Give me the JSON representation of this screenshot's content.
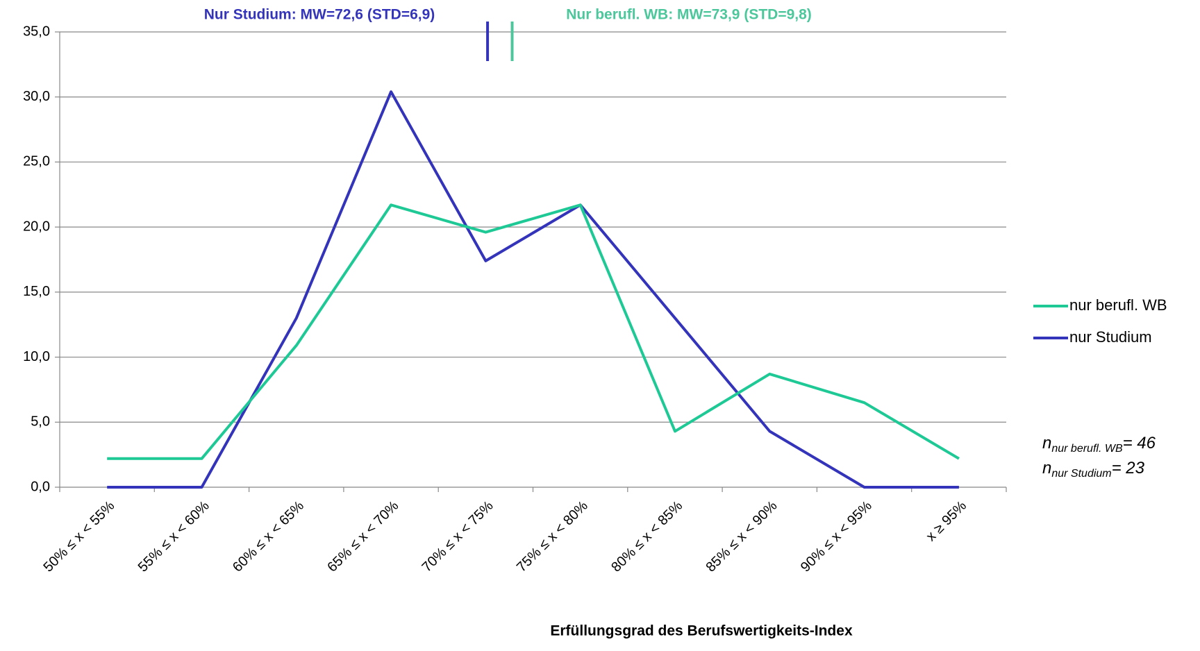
{
  "chart_data": {
    "type": "line",
    "x_label": "Erfüllungsgrad des Berufswertigkeits-Index",
    "categories": [
      "50% ≤ x < 55%",
      "55% ≤ x < 60%",
      "60% ≤ x < 65%",
      "65% ≤ x < 70%",
      "70% ≤ x < 75%",
      "75% ≤ x < 80%",
      "80% ≤ x < 85%",
      "85% ≤ x < 90%",
      "90% ≤ x < 95%",
      "x ≥ 95%"
    ],
    "series": [
      {
        "name": "nur berufl. WB",
        "color": "#1ec996",
        "values": [
          2.2,
          2.2,
          10.9,
          21.7,
          19.6,
          21.7,
          4.3,
          8.7,
          6.5,
          2.2
        ]
      },
      {
        "name": "nur Studium",
        "color": "#3434bb",
        "values": [
          0,
          0,
          13.0,
          30.4,
          17.4,
          21.7,
          13.0,
          4.3,
          0,
          0
        ]
      }
    ],
    "ylim": [
      0,
      35
    ],
    "yticks": [
      {
        "value": 0,
        "label": "0,0"
      },
      {
        "value": 5,
        "label": "5,0"
      },
      {
        "value": 10,
        "label": "10,0"
      },
      {
        "value": 15,
        "label": "15,0"
      },
      {
        "value": 20,
        "label": "20,0"
      },
      {
        "value": 25,
        "label": "25,0"
      },
      {
        "value": 30,
        "label": "30,0"
      },
      {
        "value": 35,
        "label": "35,0"
      }
    ],
    "grid": true,
    "legend": "right",
    "mean_markers": [
      {
        "text": "Nur Studium: MW=72,6 (STD=6,9)",
        "value": 72.6,
        "color": "#3434bb"
      },
      {
        "text": "Nur berufl. WB: MW=73,9 (STD=9,8)",
        "value": 73.9,
        "color": "#4cc79c"
      }
    ],
    "n_notes": [
      {
        "symbol": "n",
        "subscript": "nur berufl. WB",
        "text": "= 46"
      },
      {
        "symbol": "n",
        "subscript": "nur Studium",
        "text": "= 23"
      }
    ]
  }
}
